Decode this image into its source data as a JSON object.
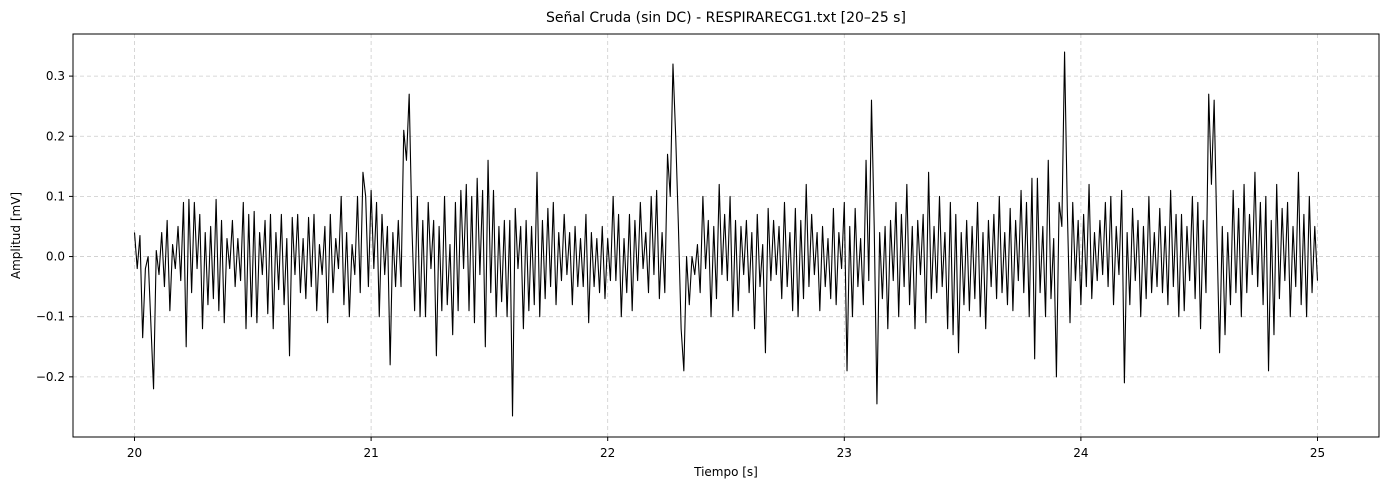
{
  "chart_data": {
    "type": "line",
    "title": "Señal Cruda (sin DC) - RESPIRARECG1.txt [20–25 s]",
    "xlabel": "Tiempo [s]",
    "ylabel": "Amplitud [mV]",
    "xlim": [
      19.74,
      25.26
    ],
    "ylim": [
      -0.3,
      0.37
    ],
    "x_ticks": [
      20,
      21,
      22,
      23,
      24,
      25
    ],
    "x_tick_labels": [
      "20",
      "21",
      "22",
      "23",
      "24",
      "25"
    ],
    "y_ticks": [
      -0.2,
      -0.1,
      0.0,
      0.1,
      0.2,
      0.3
    ],
    "y_tick_labels": [
      "−0.2",
      "−0.1",
      "0.0",
      "0.1",
      "0.2",
      "0.3"
    ],
    "grid": true,
    "grid_style": "dashed",
    "line_color": "#000000",
    "grid_color": "#cccccc",
    "series": [
      {
        "values_note": "",
        "x_start": 20.0,
        "x_end": 25.0,
        "values": [
          0.04,
          -0.02,
          0.035,
          -0.135,
          -0.02,
          0.0,
          -0.11,
          -0.22,
          0.01,
          -0.03,
          0.04,
          -0.05,
          0.06,
          -0.09,
          0.02,
          -0.02,
          0.05,
          -0.04,
          0.09,
          -0.15,
          0.095,
          -0.06,
          0.09,
          -0.02,
          0.07,
          -0.12,
          0.04,
          -0.08,
          0.05,
          -0.07,
          0.095,
          -0.09,
          0.06,
          -0.11,
          0.03,
          -0.02,
          0.06,
          -0.05,
          0.03,
          -0.04,
          0.09,
          -0.12,
          0.07,
          -0.1,
          0.075,
          -0.11,
          0.04,
          -0.03,
          0.06,
          -0.095,
          0.07,
          -0.12,
          0.04,
          -0.055,
          0.07,
          -0.08,
          0.03,
          -0.165,
          0.065,
          -0.03,
          0.07,
          -0.06,
          0.03,
          -0.07,
          0.065,
          -0.05,
          0.07,
          -0.09,
          0.02,
          -0.03,
          0.05,
          -0.11,
          0.07,
          -0.06,
          0.03,
          -0.02,
          0.1,
          -0.08,
          0.04,
          -0.1,
          0.02,
          -0.03,
          0.1,
          -0.06,
          0.14,
          0.1,
          -0.05,
          0.11,
          -0.02,
          0.09,
          -0.1,
          0.07,
          -0.03,
          0.05,
          -0.18,
          0.04,
          -0.05,
          0.06,
          -0.05,
          0.21,
          0.16,
          0.27,
          0.05,
          -0.09,
          0.1,
          -0.1,
          0.06,
          -0.1,
          0.09,
          -0.02,
          0.06,
          -0.165,
          0.05,
          -0.09,
          0.1,
          -0.08,
          0.02,
          -0.13,
          0.09,
          -0.09,
          0.11,
          -0.02,
          0.12,
          -0.09,
          0.1,
          -0.11,
          0.13,
          -0.03,
          0.11,
          -0.15,
          0.16,
          -0.06,
          0.11,
          -0.1,
          0.05,
          -0.075,
          0.06,
          -0.1,
          0.06,
          -0.265,
          0.08,
          -0.02,
          0.05,
          -0.12,
          0.06,
          -0.09,
          0.05,
          -0.08,
          0.14,
          -0.1,
          0.06,
          -0.07,
          0.08,
          -0.05,
          0.09,
          -0.08,
          0.04,
          -0.04,
          0.07,
          -0.03,
          0.04,
          -0.08,
          0.05,
          -0.05,
          0.03,
          -0.05,
          0.07,
          -0.11,
          0.04,
          -0.05,
          0.03,
          -0.06,
          0.05,
          -0.07,
          0.03,
          -0.04,
          0.1,
          -0.04,
          0.07,
          -0.1,
          0.03,
          -0.06,
          0.07,
          -0.09,
          0.06,
          -0.04,
          0.09,
          -0.02,
          0.04,
          -0.06,
          0.1,
          -0.03,
          0.11,
          -0.07,
          0.04,
          -0.06,
          0.17,
          0.1,
          0.32,
          0.2,
          0.05,
          -0.12,
          -0.19,
          0.0,
          -0.08,
          0.0,
          -0.03,
          0.02,
          -0.06,
          0.1,
          -0.02,
          0.06,
          -0.1,
          0.05,
          -0.07,
          0.12,
          -0.03,
          0.07,
          -0.04,
          0.1,
          -0.1,
          0.06,
          -0.09,
          0.05,
          -0.03,
          0.06,
          -0.06,
          0.04,
          -0.12,
          0.07,
          -0.05,
          0.02,
          -0.16,
          0.08,
          -0.04,
          0.06,
          -0.03,
          0.05,
          -0.07,
          0.09,
          -0.05,
          0.04,
          -0.09,
          0.08,
          -0.1,
          0.06,
          -0.07,
          0.12,
          -0.05,
          0.07,
          -0.03,
          0.04,
          -0.09,
          0.05,
          -0.05,
          0.03,
          -0.07,
          0.08,
          -0.08,
          0.04,
          -0.02,
          0.09,
          -0.19,
          0.05,
          -0.1,
          0.08,
          -0.05,
          0.03,
          -0.08,
          0.16,
          -0.04,
          0.26,
          0.05,
          -0.245,
          0.04,
          -0.07,
          0.05,
          -0.12,
          0.06,
          -0.04,
          0.09,
          -0.1,
          0.07,
          -0.05,
          0.12,
          -0.08,
          0.05,
          -0.12,
          0.06,
          -0.03,
          0.07,
          -0.11,
          0.14,
          -0.07,
          0.05,
          -0.06,
          0.1,
          -0.05,
          0.04,
          -0.12,
          0.09,
          -0.13,
          0.07,
          -0.16,
          0.04,
          -0.08,
          0.06,
          -0.09,
          0.05,
          -0.07,
          0.09,
          -0.1,
          0.04,
          -0.12,
          0.06,
          -0.05,
          0.07,
          -0.07,
          0.1,
          -0.06,
          0.04,
          -0.08,
          0.08,
          -0.09,
          0.06,
          -0.04,
          0.11,
          -0.06,
          0.09,
          -0.1,
          0.13,
          -0.17,
          0.13,
          -0.06,
          0.05,
          -0.1,
          0.16,
          -0.07,
          0.03,
          -0.2,
          0.09,
          0.05,
          0.34,
          0.08,
          -0.11,
          0.09,
          -0.04,
          0.06,
          -0.08,
          0.07,
          -0.05,
          0.12,
          -0.07,
          0.04,
          -0.04,
          0.06,
          -0.03,
          0.09,
          -0.05,
          0.1,
          -0.08,
          0.05,
          -0.03,
          0.11,
          -0.21,
          0.04,
          -0.08,
          0.08,
          -0.04,
          0.06,
          -0.1,
          0.05,
          -0.07,
          0.1,
          -0.06,
          0.04,
          -0.05,
          0.08,
          -0.06,
          0.05,
          -0.08,
          0.11,
          -0.05,
          0.07,
          -0.1,
          0.07,
          -0.09,
          0.05,
          -0.04,
          0.1,
          -0.07,
          0.09,
          -0.12,
          0.06,
          -0.06,
          0.27,
          0.12,
          0.26,
          0.04,
          -0.16,
          0.05,
          -0.13,
          0.04,
          -0.08,
          0.11,
          -0.06,
          0.08,
          -0.1,
          0.12,
          -0.06,
          0.07,
          -0.03,
          0.14,
          -0.05,
          0.09,
          -0.08,
          0.1,
          -0.19,
          0.06,
          -0.13,
          0.12,
          -0.07,
          0.08,
          -0.04,
          0.09,
          -0.1,
          0.05,
          -0.05,
          0.14,
          -0.08,
          0.07,
          -0.1,
          0.1,
          -0.06,
          0.05,
          -0.04
        ]
      }
    ]
  }
}
